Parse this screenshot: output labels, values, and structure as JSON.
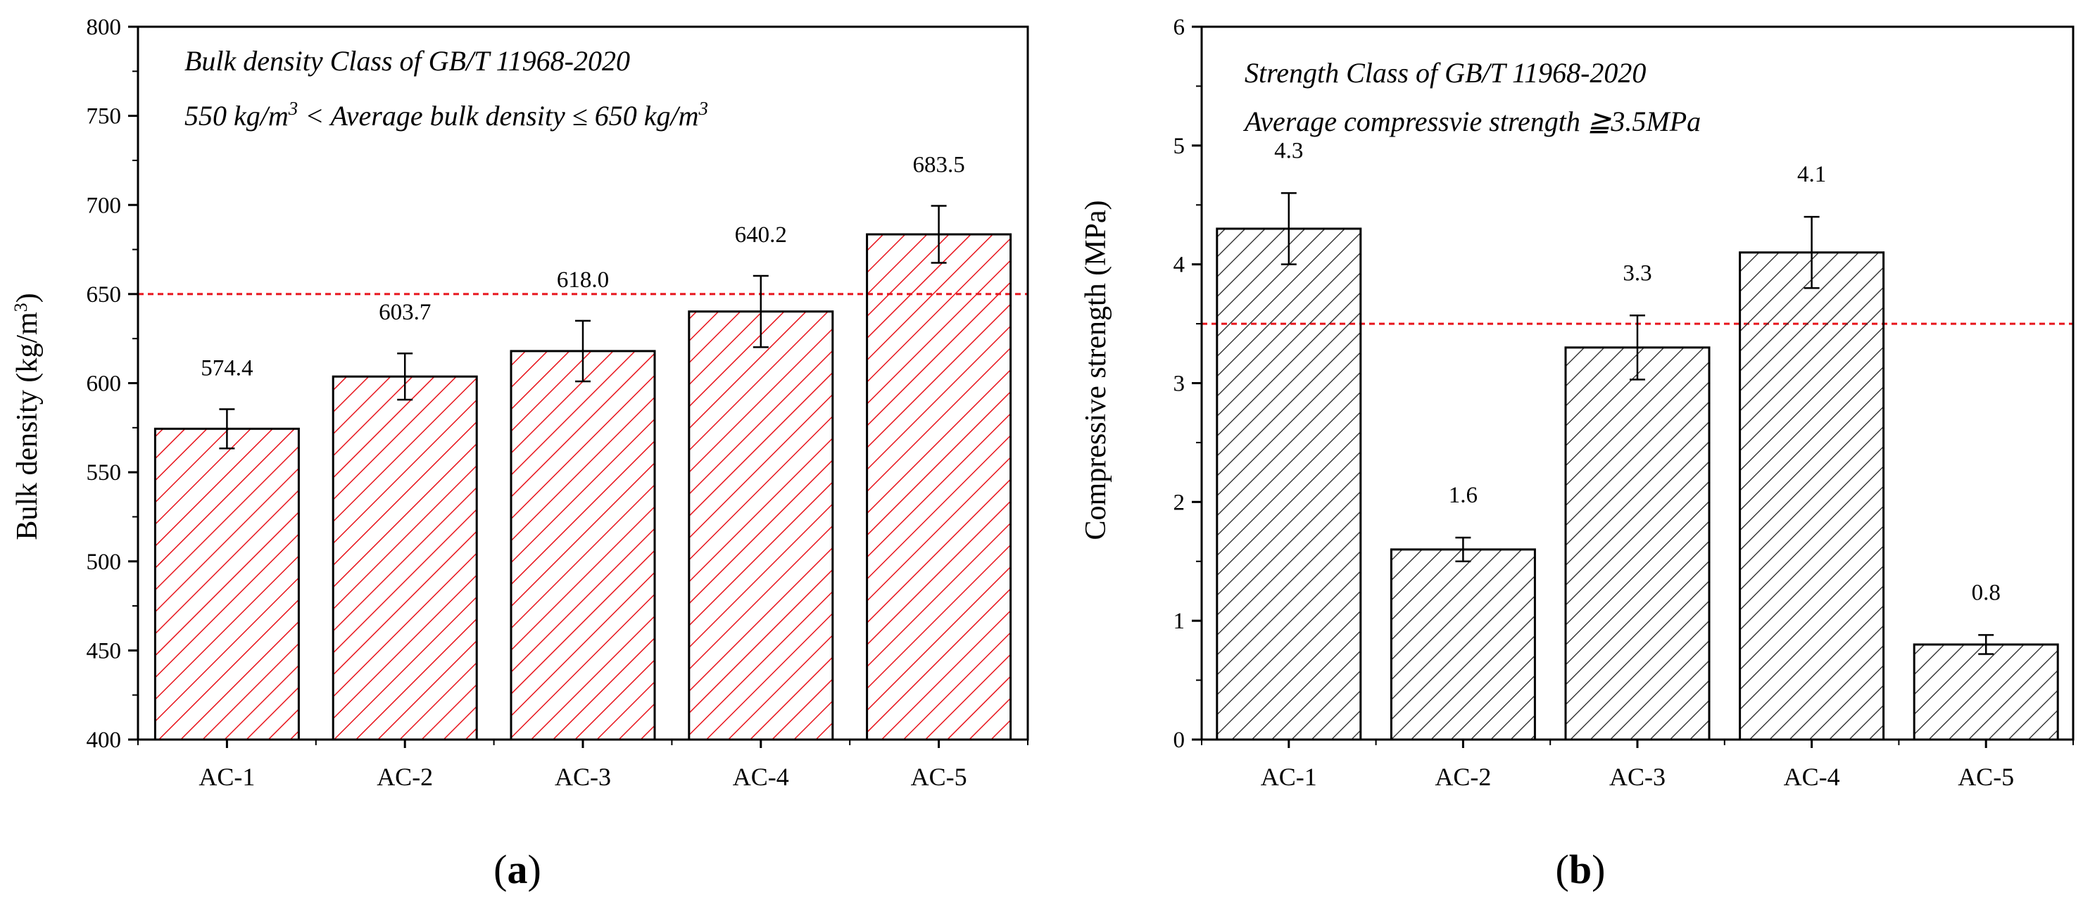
{
  "chart_data": [
    {
      "type": "bar",
      "panel_label_open": "(",
      "panel_label_letter": "a",
      "panel_label_close": ")",
      "categories": [
        "AC-1",
        "AC-2",
        "AC-3",
        "AC-4",
        "AC-5"
      ],
      "values": [
        574.4,
        603.7,
        618.0,
        640.2,
        683.5
      ],
      "value_labels": [
        "574.4",
        "603.7",
        "618.0",
        "640.2",
        "683.5"
      ],
      "error": [
        11,
        13,
        17,
        20,
        16
      ],
      "ylabel": "Bulk density (kg/m",
      "ylabel_sup": "3",
      "ylabel_end": ")",
      "ylim": [
        400,
        800
      ],
      "yticks": [
        400,
        450,
        500,
        550,
        600,
        650,
        700,
        750,
        800
      ],
      "reference_line": 650,
      "bar_color": "#e8141c",
      "reference_color": "#e8141c",
      "annotation_line1": "Bulk density Class of GB/T 11968-2020",
      "annotation_line2_a": "550 kg/m",
      "annotation_line2_sup1": "3",
      "annotation_line2_b": " < Average bulk density ≤ 650 kg/m",
      "annotation_line2_sup2": "3"
    },
    {
      "type": "bar",
      "panel_label_open": "(",
      "panel_label_letter": "b",
      "panel_label_close": ")",
      "categories": [
        "AC-1",
        "AC-2",
        "AC-3",
        "AC-4",
        "AC-5"
      ],
      "values": [
        4.3,
        1.6,
        3.3,
        4.1,
        0.8
      ],
      "value_labels": [
        "4.3",
        "1.6",
        "3.3",
        "4.1",
        "0.8"
      ],
      "error": [
        0.3,
        0.1,
        0.27,
        0.3,
        0.08
      ],
      "ylabel": "Compressive strength (MPa)",
      "ylim": [
        0,
        6
      ],
      "yticks": [
        0,
        1,
        2,
        3,
        4,
        5,
        6
      ],
      "reference_line": 3.5,
      "bar_color": "#111111",
      "reference_color": "#e8141c",
      "annotation_line1": "Strength Class of GB/T 11968-2020",
      "annotation_line2": "Average compressvie strength ≧3.5MPa"
    }
  ]
}
